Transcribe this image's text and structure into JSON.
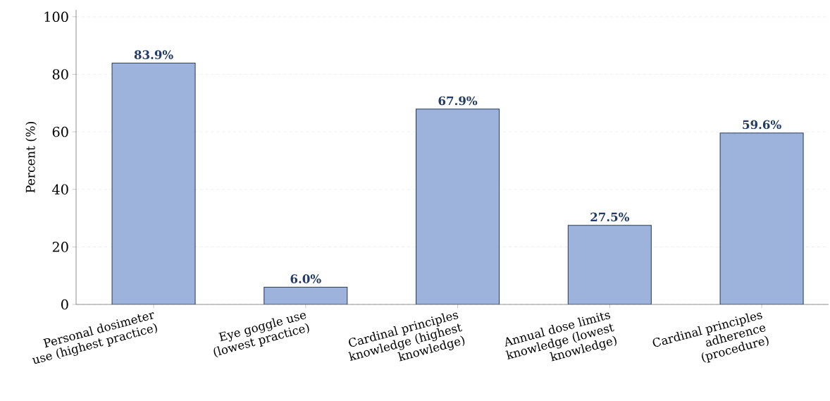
{
  "chart_data": {
    "type": "bar",
    "ylabel": "Percent (%)",
    "categories": [
      "Personal dosimeter use (highest practice)",
      "Eye goggle use (lowest practice)",
      "Cardinal principles knowledge (highest knowledge)",
      "Annual dose limits knowledge (lowest knowledge)",
      "Cardinal principles adherence (procedure)"
    ],
    "values": [
      83.9,
      6.0,
      67.9,
      27.5,
      59.6
    ],
    "value_labels": [
      "83.9%",
      "6.0%",
      "67.9%",
      "27.5%",
      "59.6%"
    ],
    "color": "#9db3dc",
    "ylim": [
      0,
      102.4
    ],
    "yticks": [
      0,
      20,
      40,
      60,
      80,
      100
    ],
    "grid": "y"
  }
}
